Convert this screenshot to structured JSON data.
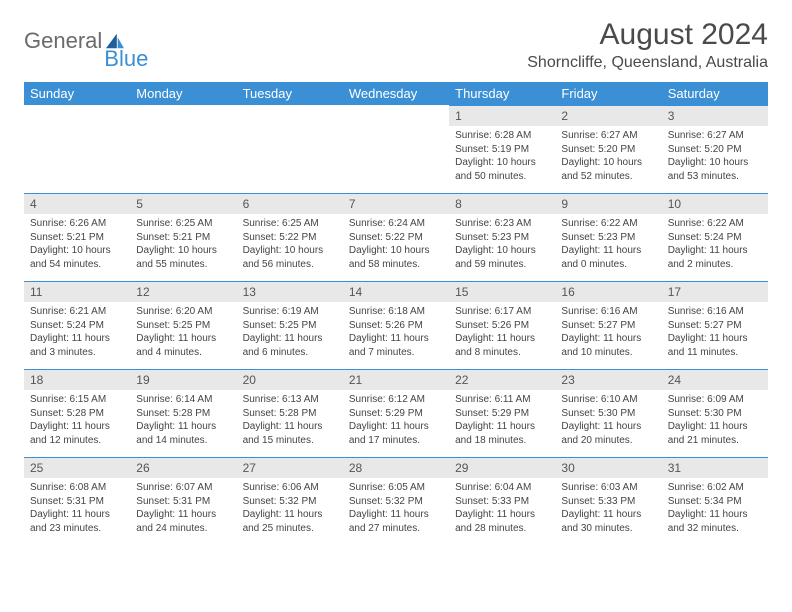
{
  "brand": {
    "text1": "General",
    "text2": "Blue"
  },
  "title": "August 2024",
  "location": "Shorncliffe, Queensland, Australia",
  "colors": {
    "accent": "#3b8fd4",
    "header_text": "#ffffff",
    "daybar_bg": "#e8e8e8",
    "text": "#444444",
    "title_color": "#4a4a4a"
  },
  "weekdays": [
    "Sunday",
    "Monday",
    "Tuesday",
    "Wednesday",
    "Thursday",
    "Friday",
    "Saturday"
  ],
  "weeks": [
    [
      null,
      null,
      null,
      null,
      {
        "n": 1,
        "sr": "6:28 AM",
        "ss": "5:19 PM",
        "dl": "10 hours and 50 minutes."
      },
      {
        "n": 2,
        "sr": "6:27 AM",
        "ss": "5:20 PM",
        "dl": "10 hours and 52 minutes."
      },
      {
        "n": 3,
        "sr": "6:27 AM",
        "ss": "5:20 PM",
        "dl": "10 hours and 53 minutes."
      }
    ],
    [
      {
        "n": 4,
        "sr": "6:26 AM",
        "ss": "5:21 PM",
        "dl": "10 hours and 54 minutes."
      },
      {
        "n": 5,
        "sr": "6:25 AM",
        "ss": "5:21 PM",
        "dl": "10 hours and 55 minutes."
      },
      {
        "n": 6,
        "sr": "6:25 AM",
        "ss": "5:22 PM",
        "dl": "10 hours and 56 minutes."
      },
      {
        "n": 7,
        "sr": "6:24 AM",
        "ss": "5:22 PM",
        "dl": "10 hours and 58 minutes."
      },
      {
        "n": 8,
        "sr": "6:23 AM",
        "ss": "5:23 PM",
        "dl": "10 hours and 59 minutes."
      },
      {
        "n": 9,
        "sr": "6:22 AM",
        "ss": "5:23 PM",
        "dl": "11 hours and 0 minutes."
      },
      {
        "n": 10,
        "sr": "6:22 AM",
        "ss": "5:24 PM",
        "dl": "11 hours and 2 minutes."
      }
    ],
    [
      {
        "n": 11,
        "sr": "6:21 AM",
        "ss": "5:24 PM",
        "dl": "11 hours and 3 minutes."
      },
      {
        "n": 12,
        "sr": "6:20 AM",
        "ss": "5:25 PM",
        "dl": "11 hours and 4 minutes."
      },
      {
        "n": 13,
        "sr": "6:19 AM",
        "ss": "5:25 PM",
        "dl": "11 hours and 6 minutes."
      },
      {
        "n": 14,
        "sr": "6:18 AM",
        "ss": "5:26 PM",
        "dl": "11 hours and 7 minutes."
      },
      {
        "n": 15,
        "sr": "6:17 AM",
        "ss": "5:26 PM",
        "dl": "11 hours and 8 minutes."
      },
      {
        "n": 16,
        "sr": "6:16 AM",
        "ss": "5:27 PM",
        "dl": "11 hours and 10 minutes."
      },
      {
        "n": 17,
        "sr": "6:16 AM",
        "ss": "5:27 PM",
        "dl": "11 hours and 11 minutes."
      }
    ],
    [
      {
        "n": 18,
        "sr": "6:15 AM",
        "ss": "5:28 PM",
        "dl": "11 hours and 12 minutes."
      },
      {
        "n": 19,
        "sr": "6:14 AM",
        "ss": "5:28 PM",
        "dl": "11 hours and 14 minutes."
      },
      {
        "n": 20,
        "sr": "6:13 AM",
        "ss": "5:28 PM",
        "dl": "11 hours and 15 minutes."
      },
      {
        "n": 21,
        "sr": "6:12 AM",
        "ss": "5:29 PM",
        "dl": "11 hours and 17 minutes."
      },
      {
        "n": 22,
        "sr": "6:11 AM",
        "ss": "5:29 PM",
        "dl": "11 hours and 18 minutes."
      },
      {
        "n": 23,
        "sr": "6:10 AM",
        "ss": "5:30 PM",
        "dl": "11 hours and 20 minutes."
      },
      {
        "n": 24,
        "sr": "6:09 AM",
        "ss": "5:30 PM",
        "dl": "11 hours and 21 minutes."
      }
    ],
    [
      {
        "n": 25,
        "sr": "6:08 AM",
        "ss": "5:31 PM",
        "dl": "11 hours and 23 minutes."
      },
      {
        "n": 26,
        "sr": "6:07 AM",
        "ss": "5:31 PM",
        "dl": "11 hours and 24 minutes."
      },
      {
        "n": 27,
        "sr": "6:06 AM",
        "ss": "5:32 PM",
        "dl": "11 hours and 25 minutes."
      },
      {
        "n": 28,
        "sr": "6:05 AM",
        "ss": "5:32 PM",
        "dl": "11 hours and 27 minutes."
      },
      {
        "n": 29,
        "sr": "6:04 AM",
        "ss": "5:33 PM",
        "dl": "11 hours and 28 minutes."
      },
      {
        "n": 30,
        "sr": "6:03 AM",
        "ss": "5:33 PM",
        "dl": "11 hours and 30 minutes."
      },
      {
        "n": 31,
        "sr": "6:02 AM",
        "ss": "5:34 PM",
        "dl": "11 hours and 32 minutes."
      }
    ]
  ],
  "labels": {
    "sunrise": "Sunrise:",
    "sunset": "Sunset:",
    "daylight": "Daylight:"
  }
}
